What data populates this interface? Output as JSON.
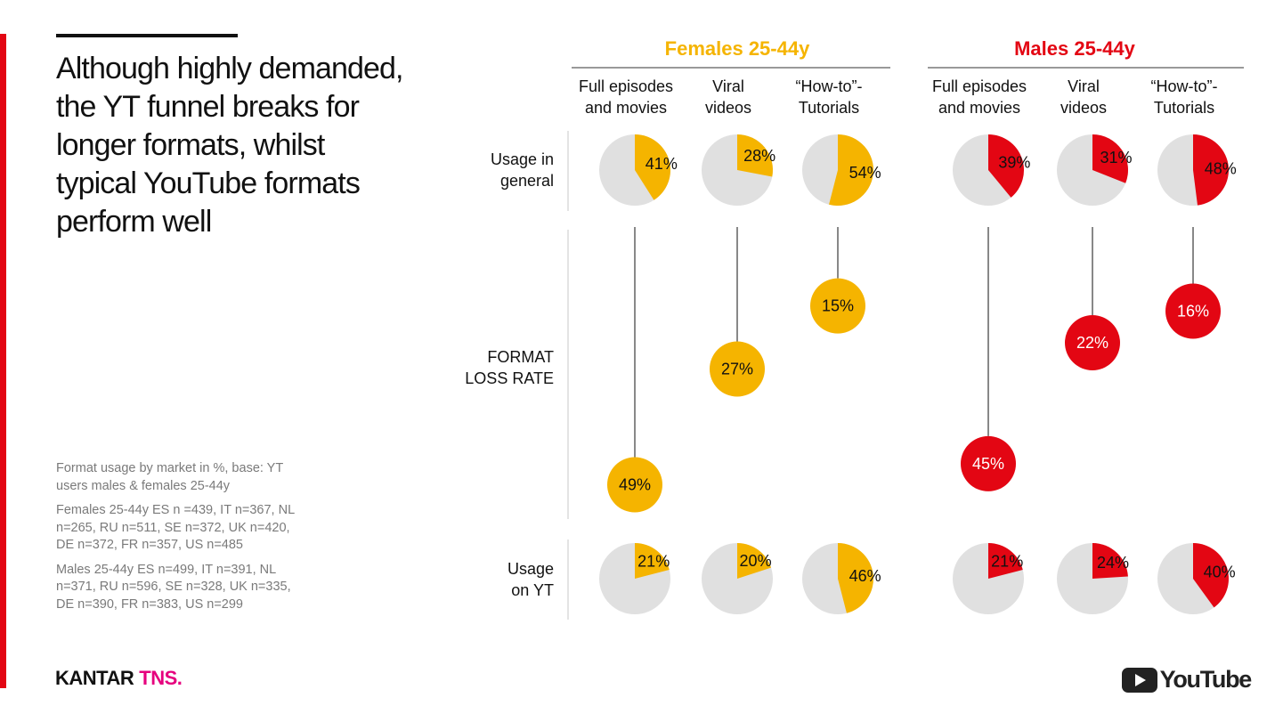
{
  "headline": "Although highly demanded, the YT funnel breaks for longer formats, whilst typical YouTube formats perform well",
  "notes": [
    "Format usage by market in %, base: YT users males & females 25-44y",
    "Females 25-44y ES n =439, IT n=367, NL n=265, RU n=511, SE n=372, UK n=420, DE n=372, FR n=357, US n=485",
    "Males 25-44y ES n=499, IT n=391, NL n=371, RU n=596, SE n=328, UK n=335, DE n=390, FR n=383, US n=299"
  ],
  "logos": {
    "kantar": "KANTAR",
    "tns": "TNS.",
    "youtube": "YouTube"
  },
  "colors": {
    "female": "#f5b400",
    "male": "#e30613",
    "pie_bg": "#e0e0e0",
    "accent_bar": "#e30613"
  },
  "chart_data": {
    "type": "pie",
    "rows": [
      {
        "key": "general",
        "label": [
          "Usage in",
          "general"
        ]
      },
      {
        "key": "loss",
        "label": [
          "FORMAT",
          "LOSS RATE"
        ]
      },
      {
        "key": "yt",
        "label": [
          "Usage",
          "on YT"
        ]
      }
    ],
    "groups": [
      {
        "name": "Females 25-44y",
        "color": "#f5b400",
        "formats": [
          {
            "label": [
              "Full episodes",
              "and movies"
            ],
            "general": 41,
            "loss": 49,
            "yt": 21
          },
          {
            "label": [
              "Viral",
              "videos"
            ],
            "general": 28,
            "loss": 27,
            "yt": 20
          },
          {
            "label": [
              "“How-to”-",
              "Tutorials"
            ],
            "general": 54,
            "loss": 15,
            "yt": 46
          }
        ]
      },
      {
        "name": "Males 25-44y",
        "color": "#e30613",
        "formats": [
          {
            "label": [
              "Full episodes",
              "and movies"
            ],
            "general": 39,
            "loss": 45,
            "yt": 21
          },
          {
            "label": [
              "Viral",
              "videos"
            ],
            "general": 31,
            "loss": 22,
            "yt": 24
          },
          {
            "label": [
              "“How-to”-",
              "Tutorials"
            ],
            "general": 48,
            "loss": 16,
            "yt": 40
          }
        ]
      }
    ],
    "unit": "%"
  }
}
